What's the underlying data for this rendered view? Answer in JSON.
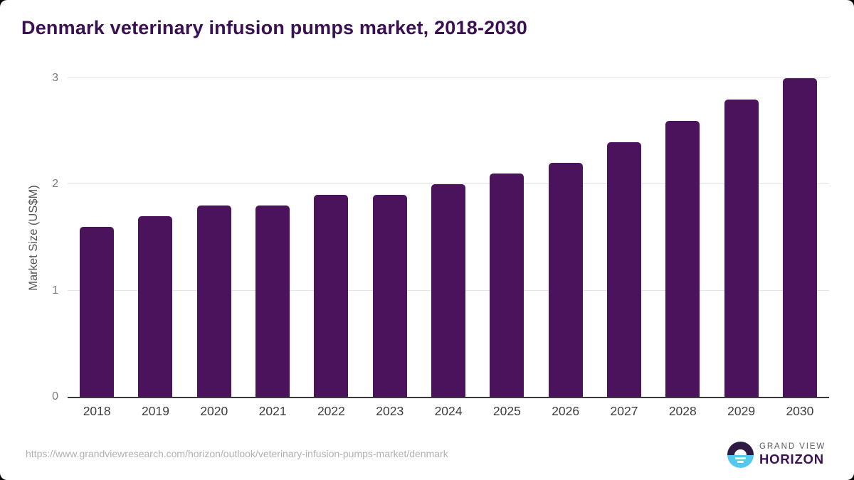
{
  "title": "Denmark veterinary infusion pumps market, 2018-2030",
  "chart_data": {
    "type": "bar",
    "title": "Denmark veterinary infusion pumps market, 2018-2030",
    "categories": [
      "2018",
      "2019",
      "2020",
      "2021",
      "2022",
      "2023",
      "2024",
      "2025",
      "2026",
      "2027",
      "2028",
      "2029",
      "2030"
    ],
    "values": [
      1.6,
      1.7,
      1.8,
      1.8,
      1.9,
      1.9,
      2.0,
      2.1,
      2.2,
      2.4,
      2.6,
      2.8,
      3.0
    ],
    "xlabel": "",
    "ylabel": "Market Size (US$M)",
    "ylim": [
      0,
      3
    ],
    "yticks": [
      0,
      1,
      2,
      3
    ],
    "grid": true,
    "legend_position": "none",
    "bar_color": "#4A135C"
  },
  "footer": {
    "source_url": "https://www.grandviewresearch.com/horizon/outlook/veterinary-infusion-pumps-market/denmark",
    "logo": {
      "icon": "horizon-sunset-circle-icon",
      "brand_top": "GRAND VIEW",
      "brand_bottom": "HORIZON"
    }
  },
  "colors": {
    "bar": "#4A135C",
    "title_text": "#3A1053",
    "axis_line": "#3A3A3A",
    "gridline": "#E4E4E4",
    "x_tick_label": "#3D3D3D",
    "y_tick_label": "#7A7A7A",
    "y_axis_title": "#555555",
    "url_text": "#B1B1B1",
    "logo_top_half": "#2E1A43",
    "logo_bottom_half": "#55C8F0",
    "logo_brand_top_text": "#5F5A66",
    "logo_brand_bottom_text": "#3A1053"
  }
}
